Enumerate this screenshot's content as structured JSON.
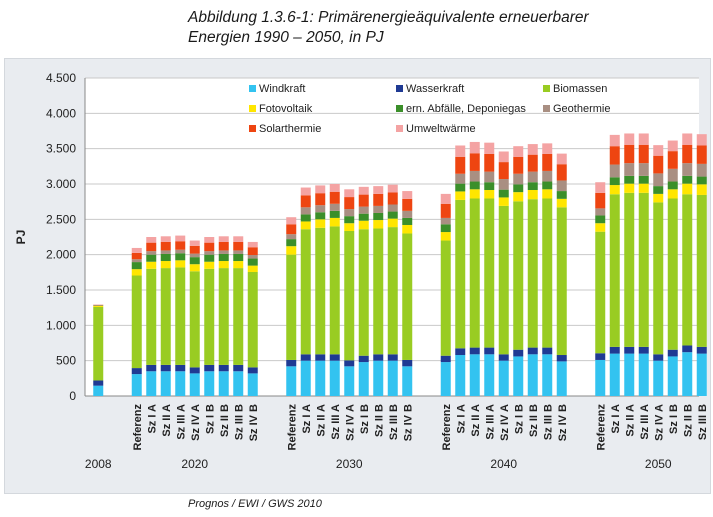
{
  "header": {
    "title_line1": "Abbildung 1.3.6-1: Primärenergieäquivalente erneuerbarer",
    "title_line2": "Energien 1990 – 2050, in PJ"
  },
  "footer": {
    "source": "Prognos / EWI / GWS 2010"
  },
  "chart_data": {
    "type": "bar",
    "stacked": true,
    "ylabel": "PJ",
    "xlabel": "",
    "ylim": [
      0,
      4500
    ],
    "yticks": [
      0,
      500,
      1000,
      1500,
      2000,
      2500,
      3000,
      3500,
      4000,
      4500
    ],
    "ytick_labels": [
      "0",
      "500",
      "1.000",
      "1.500",
      "2.000",
      "2.500",
      "3.000",
      "3.500",
      "4.000",
      "4.500"
    ],
    "grid": true,
    "legend_position": "top-right, inside plot",
    "groups": [
      {
        "label": "2008",
        "categories": [
          ""
        ]
      },
      {
        "label": "2020",
        "categories": [
          "Referenz",
          "Sz I A",
          "Sz II A",
          "Sz III A",
          "Sz IV A",
          "Sz I B",
          "Sz II B",
          "Sz III B",
          "Sz IV B"
        ]
      },
      {
        "label": "2030",
        "categories": [
          "Referenz",
          "Sz I A",
          "Sz II A",
          "Sz III A",
          "Sz IV A",
          "Sz I B",
          "Sz II B",
          "Sz III B",
          "Sz IV B"
        ]
      },
      {
        "label": "2040",
        "categories": [
          "Referenz",
          "Sz I A",
          "Sz II A",
          "Sz III A",
          "Sz IV A",
          "Sz I B",
          "Sz II B",
          "Sz III B",
          "Sz IV B"
        ]
      },
      {
        "label": "2050",
        "categories": [
          "Referenz",
          "Sz I A",
          "Sz II A",
          "Sz III A",
          "Sz IV A",
          "Sz I B",
          "Sz II B",
          "Sz III B",
          "Sz IV B"
        ]
      }
    ],
    "series": [
      {
        "name": "Windkraft",
        "color": "#33c3f0",
        "values": [
          146,
          310,
          350,
          350,
          350,
          320,
          350,
          350,
          350,
          320,
          420,
          500,
          500,
          500,
          420,
          480,
          500,
          500,
          420,
          480,
          580,
          590,
          590,
          500,
          560,
          590,
          590,
          490,
          510,
          600,
          600,
          600,
          500,
          560,
          620,
          600,
          480
        ]
      },
      {
        "name": "Wasserkraft",
        "color": "#1f3a93",
        "values": [
          74,
          85,
          90,
          90,
          90,
          85,
          90,
          90,
          90,
          85,
          90,
          90,
          90,
          90,
          85,
          90,
          90,
          90,
          90,
          90,
          95,
          95,
          95,
          90,
          95,
          95,
          95,
          90,
          95,
          95,
          95,
          95,
          90,
          95,
          95,
          95,
          90
        ]
      },
      {
        "name": "Biomassen",
        "color": "#99cc22",
        "values": [
          1040,
          1310,
          1360,
          1370,
          1380,
          1360,
          1360,
          1370,
          1370,
          1350,
          1490,
          1770,
          1790,
          1810,
          1830,
          1790,
          1780,
          1800,
          1790,
          1630,
          2100,
          2110,
          2110,
          2100,
          2100,
          2100,
          2110,
          2090,
          1720,
          2160,
          2180,
          2180,
          2150,
          2140,
          2140,
          2150,
          2150
        ]
      },
      {
        "name": "Fotovoltaik",
        "color": "#ffe600",
        "values": [
          15,
          90,
          100,
          100,
          100,
          100,
          100,
          100,
          100,
          90,
          120,
          110,
          120,
          120,
          110,
          120,
          120,
          120,
          120,
          120,
          120,
          130,
          120,
          120,
          130,
          130,
          130,
          120,
          120,
          130,
          130,
          130,
          120,
          130,
          150,
          150,
          130
        ]
      },
      {
        "name": "ern. Abfälle, Deponiegas",
        "color": "#3b8f2a",
        "values": [
          5,
          100,
          100,
          100,
          100,
          100,
          100,
          100,
          100,
          100,
          100,
          100,
          100,
          100,
          100,
          100,
          100,
          100,
          100,
          110,
          110,
          110,
          110,
          110,
          110,
          110,
          110,
          110,
          110,
          110,
          110,
          110,
          110,
          110,
          110,
          110,
          110
        ]
      },
      {
        "name": "Geothermie",
        "color": "#a98f82",
        "values": [
          5,
          40,
          50,
          50,
          50,
          50,
          50,
          50,
          50,
          50,
          70,
          100,
          100,
          100,
          100,
          100,
          100,
          100,
          100,
          90,
          140,
          150,
          150,
          150,
          150,
          150,
          150,
          150,
          100,
          180,
          180,
          180,
          180,
          180,
          180,
          180,
          180
        ]
      },
      {
        "name": "Solarthermie",
        "color": "#ee4511",
        "values": [
          5,
          90,
          120,
          120,
          120,
          110,
          120,
          120,
          120,
          110,
          140,
          170,
          170,
          170,
          170,
          170,
          170,
          170,
          170,
          200,
          240,
          250,
          250,
          240,
          240,
          240,
          240,
          230,
          220,
          260,
          260,
          260,
          250,
          250,
          260,
          260,
          250
        ]
      },
      {
        "name": "Umweltwärme",
        "color": "#f4a3a3",
        "values": [
          5,
          70,
          80,
          80,
          80,
          75,
          80,
          80,
          80,
          75,
          100,
          110,
          110,
          110,
          110,
          110,
          110,
          110,
          110,
          140,
          160,
          160,
          160,
          150,
          150,
          150,
          150,
          150,
          150,
          160,
          160,
          160,
          150,
          150,
          160,
          160,
          150
        ]
      }
    ]
  }
}
